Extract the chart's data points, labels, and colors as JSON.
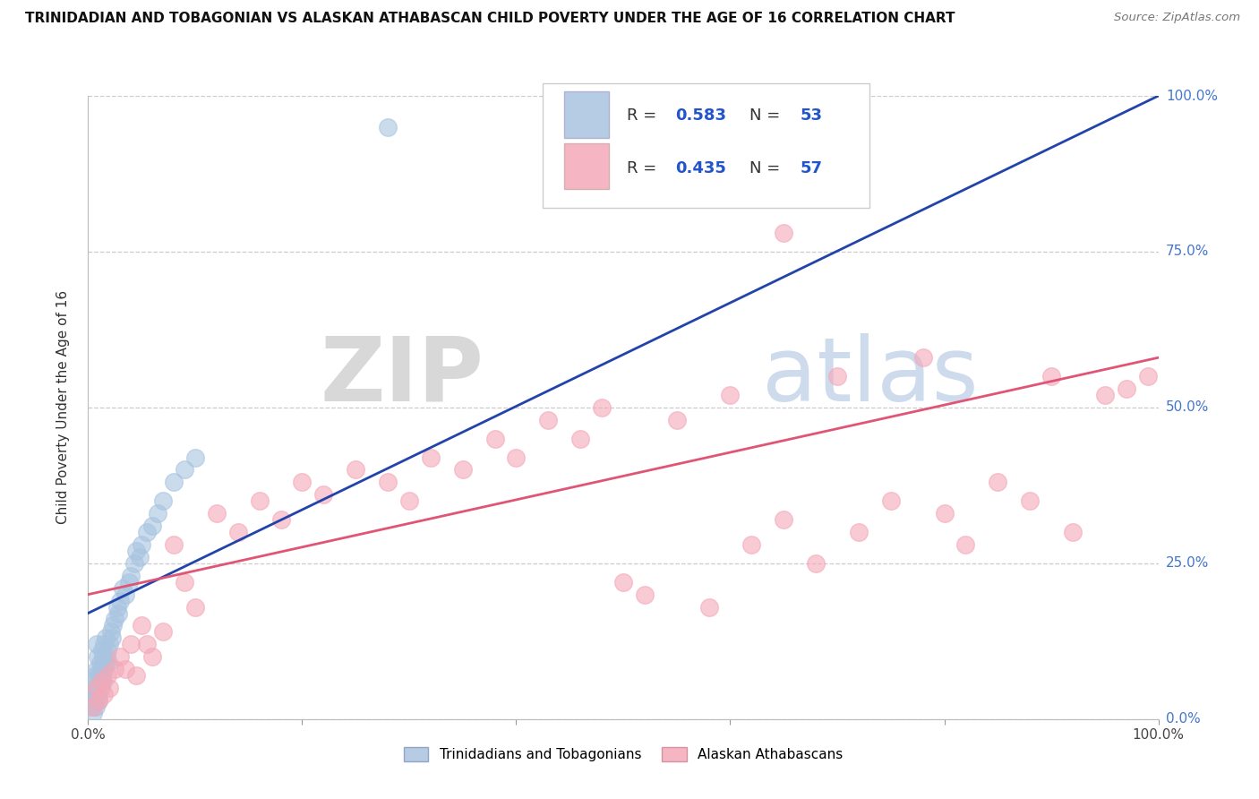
{
  "title": "TRINIDADIAN AND TOBAGONIAN VS ALASKAN ATHABASCAN CHILD POVERTY UNDER THE AGE OF 16 CORRELATION CHART",
  "source": "Source: ZipAtlas.com",
  "ylabel": "Child Poverty Under the Age of 16",
  "xlim": [
    0.0,
    1.0
  ],
  "ylim": [
    0.0,
    1.0
  ],
  "blue_R": 0.583,
  "blue_N": 53,
  "pink_R": 0.435,
  "pink_N": 57,
  "blue_color": "#a8c4e0",
  "pink_color": "#f4a8b8",
  "blue_line_color": "#2244aa",
  "pink_line_color": "#e05575",
  "blue_scatter": [
    [
      0.003,
      0.02
    ],
    [
      0.004,
      0.04
    ],
    [
      0.005,
      0.01
    ],
    [
      0.005,
      0.06
    ],
    [
      0.006,
      0.03
    ],
    [
      0.006,
      0.07
    ],
    [
      0.007,
      0.02
    ],
    [
      0.007,
      0.05
    ],
    [
      0.008,
      0.08
    ],
    [
      0.008,
      0.12
    ],
    [
      0.009,
      0.04
    ],
    [
      0.009,
      0.1
    ],
    [
      0.01,
      0.03
    ],
    [
      0.01,
      0.07
    ],
    [
      0.011,
      0.06
    ],
    [
      0.011,
      0.09
    ],
    [
      0.012,
      0.05
    ],
    [
      0.012,
      0.08
    ],
    [
      0.013,
      0.07
    ],
    [
      0.013,
      0.11
    ],
    [
      0.014,
      0.06
    ],
    [
      0.014,
      0.1
    ],
    [
      0.015,
      0.08
    ],
    [
      0.015,
      0.12
    ],
    [
      0.016,
      0.09
    ],
    [
      0.016,
      0.13
    ],
    [
      0.017,
      0.1
    ],
    [
      0.018,
      0.11
    ],
    [
      0.019,
      0.09
    ],
    [
      0.02,
      0.12
    ],
    [
      0.021,
      0.14
    ],
    [
      0.022,
      0.13
    ],
    [
      0.023,
      0.15
    ],
    [
      0.025,
      0.16
    ],
    [
      0.027,
      0.18
    ],
    [
      0.028,
      0.17
    ],
    [
      0.03,
      0.19
    ],
    [
      0.032,
      0.21
    ],
    [
      0.035,
      0.2
    ],
    [
      0.038,
      0.22
    ],
    [
      0.04,
      0.23
    ],
    [
      0.043,
      0.25
    ],
    [
      0.045,
      0.27
    ],
    [
      0.048,
      0.26
    ],
    [
      0.05,
      0.28
    ],
    [
      0.055,
      0.3
    ],
    [
      0.06,
      0.31
    ],
    [
      0.065,
      0.33
    ],
    [
      0.07,
      0.35
    ],
    [
      0.08,
      0.38
    ],
    [
      0.09,
      0.4
    ],
    [
      0.1,
      0.42
    ],
    [
      0.28,
      0.95
    ]
  ],
  "pink_scatter": [
    [
      0.005,
      0.02
    ],
    [
      0.008,
      0.05
    ],
    [
      0.01,
      0.03
    ],
    [
      0.012,
      0.06
    ],
    [
      0.015,
      0.04
    ],
    [
      0.018,
      0.07
    ],
    [
      0.02,
      0.05
    ],
    [
      0.025,
      0.08
    ],
    [
      0.03,
      0.1
    ],
    [
      0.035,
      0.08
    ],
    [
      0.04,
      0.12
    ],
    [
      0.045,
      0.07
    ],
    [
      0.05,
      0.15
    ],
    [
      0.055,
      0.12
    ],
    [
      0.06,
      0.1
    ],
    [
      0.07,
      0.14
    ],
    [
      0.08,
      0.28
    ],
    [
      0.09,
      0.22
    ],
    [
      0.1,
      0.18
    ],
    [
      0.12,
      0.33
    ],
    [
      0.14,
      0.3
    ],
    [
      0.16,
      0.35
    ],
    [
      0.18,
      0.32
    ],
    [
      0.2,
      0.38
    ],
    [
      0.22,
      0.36
    ],
    [
      0.25,
      0.4
    ],
    [
      0.28,
      0.38
    ],
    [
      0.3,
      0.35
    ],
    [
      0.32,
      0.42
    ],
    [
      0.35,
      0.4
    ],
    [
      0.38,
      0.45
    ],
    [
      0.4,
      0.42
    ],
    [
      0.43,
      0.48
    ],
    [
      0.46,
      0.45
    ],
    [
      0.48,
      0.5
    ],
    [
      0.5,
      0.22
    ],
    [
      0.52,
      0.2
    ],
    [
      0.55,
      0.48
    ],
    [
      0.58,
      0.18
    ],
    [
      0.6,
      0.52
    ],
    [
      0.62,
      0.28
    ],
    [
      0.65,
      0.32
    ],
    [
      0.68,
      0.25
    ],
    [
      0.7,
      0.55
    ],
    [
      0.72,
      0.3
    ],
    [
      0.75,
      0.35
    ],
    [
      0.78,
      0.58
    ],
    [
      0.8,
      0.33
    ],
    [
      0.82,
      0.28
    ],
    [
      0.85,
      0.38
    ],
    [
      0.88,
      0.35
    ],
    [
      0.9,
      0.55
    ],
    [
      0.92,
      0.3
    ],
    [
      0.95,
      0.52
    ],
    [
      0.97,
      0.53
    ],
    [
      0.99,
      0.55
    ],
    [
      0.65,
      0.78
    ]
  ],
  "blue_line_x": [
    0.0,
    1.0
  ],
  "blue_line_y": [
    0.17,
    1.0
  ],
  "pink_line_x": [
    0.0,
    1.0
  ],
  "pink_line_y": [
    0.2,
    0.58
  ],
  "watermark_zip": "ZIP",
  "watermark_atlas": "atlas"
}
